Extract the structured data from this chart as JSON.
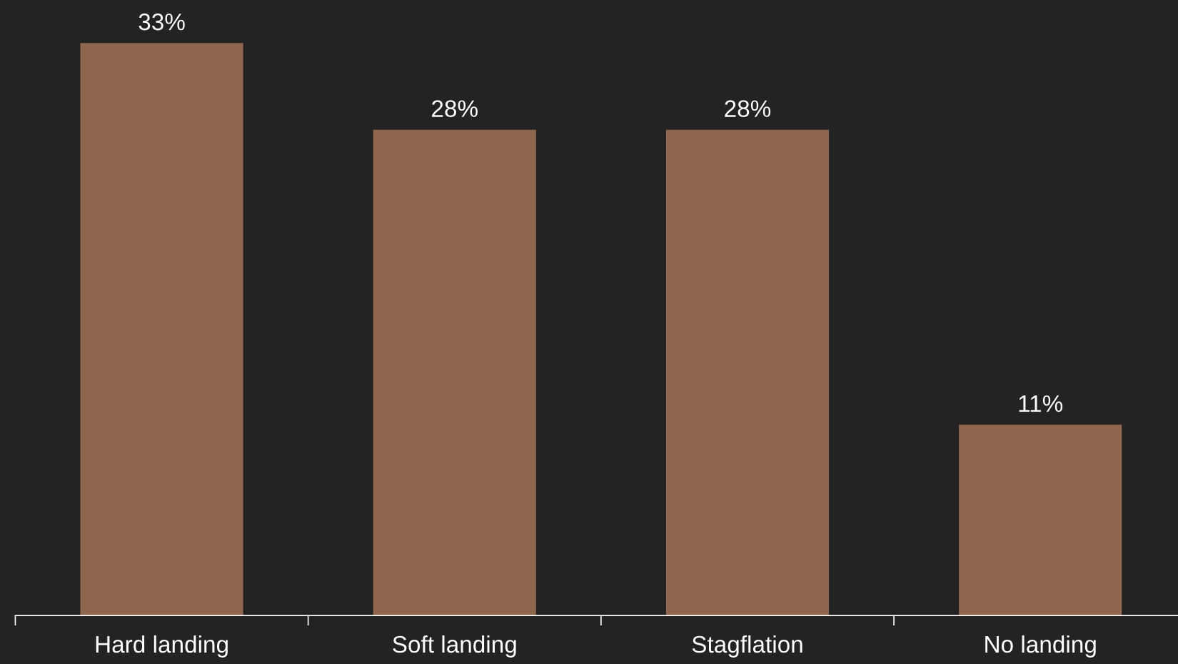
{
  "chart_data": {
    "type": "bar",
    "categories": [
      "Hard landing",
      "Soft landing",
      "Stagflation",
      "No landing"
    ],
    "values": [
      33,
      28,
      28,
      11
    ],
    "value_labels": [
      "33%",
      "28%",
      "28%",
      "11%"
    ],
    "color": "#8f664e",
    "grid": false,
    "legend": false
  }
}
